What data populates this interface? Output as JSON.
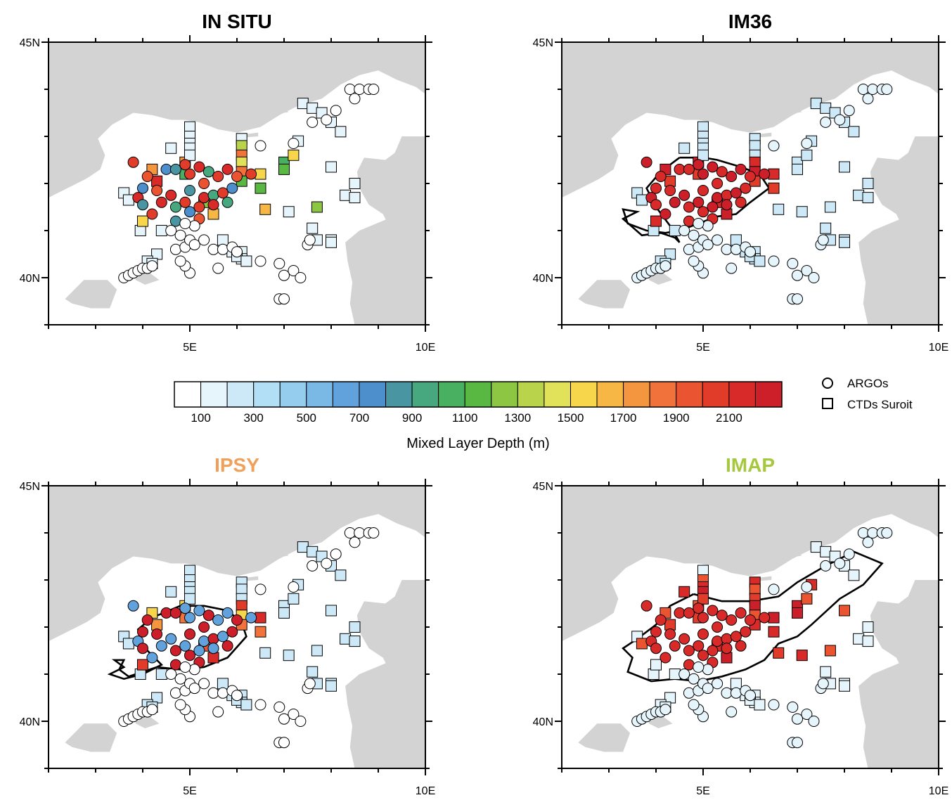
{
  "figure": {
    "colorbar": {
      "title": "Mixed Layer Depth (m)",
      "bin_width": 100,
      "tick_labels": [
        "100",
        "300",
        "500",
        "700",
        "900",
        "1100",
        "1300",
        "1500",
        "1700",
        "1900",
        "2100"
      ],
      "tick_values": [
        100,
        300,
        500,
        700,
        900,
        1100,
        1300,
        1500,
        1700,
        1900,
        2100
      ],
      "colors": [
        "#ffffff",
        "#e6f4fc",
        "#cde9f8",
        "#b2dff5",
        "#95cdee",
        "#7ab8e6",
        "#62a2dc",
        "#4d8fcc",
        "#4a95a2",
        "#47a77f",
        "#49b061",
        "#58b842",
        "#8dc643",
        "#b9d34a",
        "#e2e25a",
        "#f8d64b",
        "#f7b745",
        "#f4963f",
        "#f1723a",
        "#ea5430",
        "#e13c2a",
        "#d82a28",
        "#cc1f2a"
      ]
    },
    "legend": [
      {
        "symbol": "circle",
        "label": "ARGOs"
      },
      {
        "symbol": "square",
        "label": "CTDs Suroit"
      }
    ],
    "axes": {
      "lon_min": 2,
      "lon_max": 10,
      "lat_min": 39,
      "lat_max": 45,
      "x_tick_labels": [
        {
          "value": 5,
          "label": "5E"
        },
        {
          "value": 10,
          "label": "10E"
        }
      ],
      "y_tick_labels": [
        {
          "value": 45,
          "label": "45N"
        },
        {
          "value": 40,
          "label": "40N"
        }
      ],
      "land_color": "#d3d3d3",
      "sea_color": "#ffffff"
    },
    "panels": [
      {
        "id": "in-situ",
        "title": "IN SITU",
        "title_color": "#000000",
        "contour": false
      },
      {
        "id": "im36",
        "title": "IM36",
        "title_color": "#000000",
        "contour": true
      },
      {
        "id": "ipsy",
        "title": "IPSY",
        "title_color": "#f0a058",
        "contour": true
      },
      {
        "id": "imap",
        "title": "IMAP",
        "title_color": "#a6c83c",
        "contour": true
      }
    ],
    "map_data": {
      "argo_floats": [
        [
          3.6,
          40.0
        ],
        [
          3.7,
          40.05
        ],
        [
          3.8,
          40.1
        ],
        [
          3.9,
          40.15
        ],
        [
          4.0,
          40.2
        ],
        [
          4.1,
          40.2
        ],
        [
          4.2,
          40.25
        ],
        [
          5.0,
          40.1
        ],
        [
          4.9,
          40.25
        ],
        [
          4.8,
          40.35
        ],
        [
          4.7,
          40.6
        ],
        [
          4.9,
          40.65
        ],
        [
          5.0,
          40.8
        ],
        [
          5.1,
          40.7
        ],
        [
          5.3,
          40.8
        ],
        [
          5.5,
          40.6
        ],
        [
          5.7,
          40.6
        ],
        [
          5.9,
          40.65
        ],
        [
          6.0,
          40.55
        ],
        [
          5.6,
          40.2
        ],
        [
          6.5,
          40.35
        ],
        [
          6.9,
          40.3
        ],
        [
          7.2,
          40.15
        ],
        [
          7.35,
          40.0
        ],
        [
          7.0,
          40.05
        ],
        [
          7.5,
          40.7
        ],
        [
          7.55,
          40.8
        ],
        [
          6.9,
          39.55
        ],
        [
          7.0,
          39.55
        ],
        [
          3.8,
          42.45
        ],
        [
          4.5,
          42.3
        ],
        [
          4.1,
          42.15
        ],
        [
          3.9,
          41.7
        ],
        [
          4.0,
          41.55
        ],
        [
          4.2,
          41.35
        ],
        [
          4.4,
          41.6
        ],
        [
          4.7,
          41.5
        ],
        [
          4.9,
          41.6
        ],
        [
          5.0,
          41.4
        ],
        [
          5.2,
          41.25
        ],
        [
          5.1,
          41.1
        ],
        [
          4.7,
          41.2
        ],
        [
          4.9,
          41.15
        ],
        [
          5.3,
          41.7
        ],
        [
          5.5,
          41.75
        ],
        [
          5.7,
          41.8
        ],
        [
          5.9,
          41.9
        ],
        [
          5.3,
          42.0
        ],
        [
          5.0,
          42.2
        ],
        [
          4.7,
          42.3
        ],
        [
          4.9,
          42.4
        ],
        [
          5.2,
          42.35
        ],
        [
          5.4,
          42.25
        ],
        [
          5.6,
          42.15
        ],
        [
          5.8,
          42.3
        ],
        [
          6.0,
          42.15
        ],
        [
          6.3,
          42.2
        ],
        [
          4.0,
          41.9
        ],
        [
          4.3,
          41.85
        ],
        [
          4.6,
          41.75
        ],
        [
          5.0,
          41.85
        ],
        [
          5.2,
          41.5
        ],
        [
          5.5,
          41.55
        ],
        [
          5.8,
          41.6
        ],
        [
          4.6,
          41.0
        ],
        [
          4.8,
          40.9
        ],
        [
          7.2,
          42.85
        ],
        [
          7.6,
          43.3
        ],
        [
          7.9,
          43.35
        ],
        [
          8.1,
          43.55
        ],
        [
          8.4,
          44.0
        ],
        [
          8.5,
          43.8
        ],
        [
          8.6,
          44.0
        ],
        [
          8.8,
          44.0
        ],
        [
          8.9,
          44.0
        ],
        [
          6.5,
          42.8
        ]
      ],
      "ctd_stations": [
        [
          4.2,
          42.3
        ],
        [
          4.3,
          42.05
        ],
        [
          3.6,
          41.8
        ],
        [
          3.7,
          41.65
        ],
        [
          3.95,
          41.0
        ],
        [
          4.0,
          41.2
        ],
        [
          4.3,
          40.5
        ],
        [
          4.1,
          40.35
        ],
        [
          4.2,
          40.3
        ],
        [
          4.4,
          41.0
        ],
        [
          4.6,
          42.75
        ],
        [
          4.9,
          42.45
        ],
        [
          4.9,
          42.2
        ],
        [
          5.0,
          43.2
        ],
        [
          5.0,
          43.0
        ],
        [
          5.0,
          42.85
        ],
        [
          5.0,
          42.75
        ],
        [
          5.0,
          42.6
        ],
        [
          6.1,
          42.95
        ],
        [
          6.1,
          42.8
        ],
        [
          6.1,
          42.6
        ],
        [
          6.1,
          42.45
        ],
        [
          6.1,
          42.25
        ],
        [
          6.1,
          42.05
        ],
        [
          6.1,
          40.55
        ],
        [
          6.1,
          40.4
        ],
        [
          5.3,
          41.6
        ],
        [
          5.5,
          41.35
        ],
        [
          5.7,
          40.8
        ],
        [
          5.9,
          40.55
        ],
        [
          6.0,
          40.45
        ],
        [
          6.2,
          40.35
        ],
        [
          7.0,
          42.45
        ],
        [
          7.4,
          43.7
        ],
        [
          7.6,
          43.6
        ],
        [
          7.8,
          43.5
        ],
        [
          8.0,
          43.3
        ],
        [
          8.2,
          43.1
        ],
        [
          8.0,
          42.35
        ],
        [
          8.5,
          42.0
        ],
        [
          8.3,
          41.75
        ],
        [
          8.5,
          41.7
        ],
        [
          6.5,
          41.9
        ],
        [
          7.0,
          42.3
        ],
        [
          6.6,
          41.45
        ],
        [
          7.1,
          41.4
        ],
        [
          7.7,
          41.5
        ],
        [
          7.6,
          41.05
        ],
        [
          7.7,
          40.8
        ],
        [
          8.0,
          40.8
        ],
        [
          8.0,
          40.75
        ],
        [
          6.5,
          42.2
        ],
        [
          7.2,
          42.6
        ],
        [
          7.3,
          42.9
        ]
      ]
    }
  }
}
